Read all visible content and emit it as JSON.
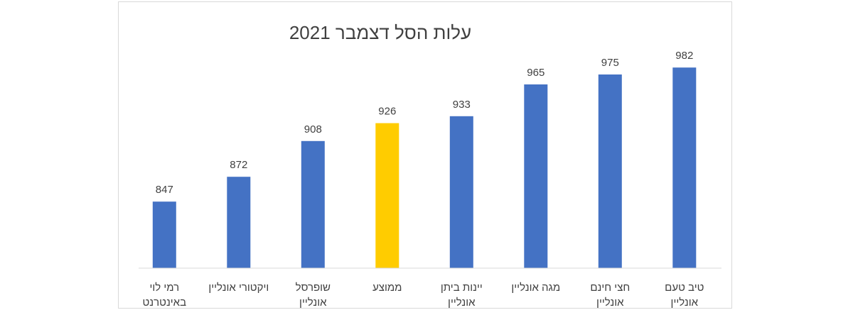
{
  "chart_data": {
    "type": "bar",
    "title": "עלות הסל דצמבר 2021",
    "categories": [
      [
        "טיב טעם",
        "אונליין"
      ],
      [
        "חצי חינם",
        "אונליין"
      ],
      [
        "מגה אונליין"
      ],
      [
        "יינות ביתן",
        "אונליין"
      ],
      [
        "ממוצע"
      ],
      [
        "שופרסל",
        "אונליין"
      ],
      [
        "ויקטורי  אונליין"
      ],
      [
        "רמי לוי",
        "באינטרנט"
      ]
    ],
    "values": [
      982,
      975,
      965,
      933,
      926,
      908,
      872,
      847
    ],
    "bar_colors": [
      "#4472C4",
      "#4472C4",
      "#4472C4",
      "#4472C4",
      "#FFCC00",
      "#4472C4",
      "#4472C4",
      "#4472C4"
    ],
    "xlabel": "",
    "ylabel": "",
    "ylim": [
      780,
      1000
    ],
    "grid": false,
    "legend": "none"
  }
}
